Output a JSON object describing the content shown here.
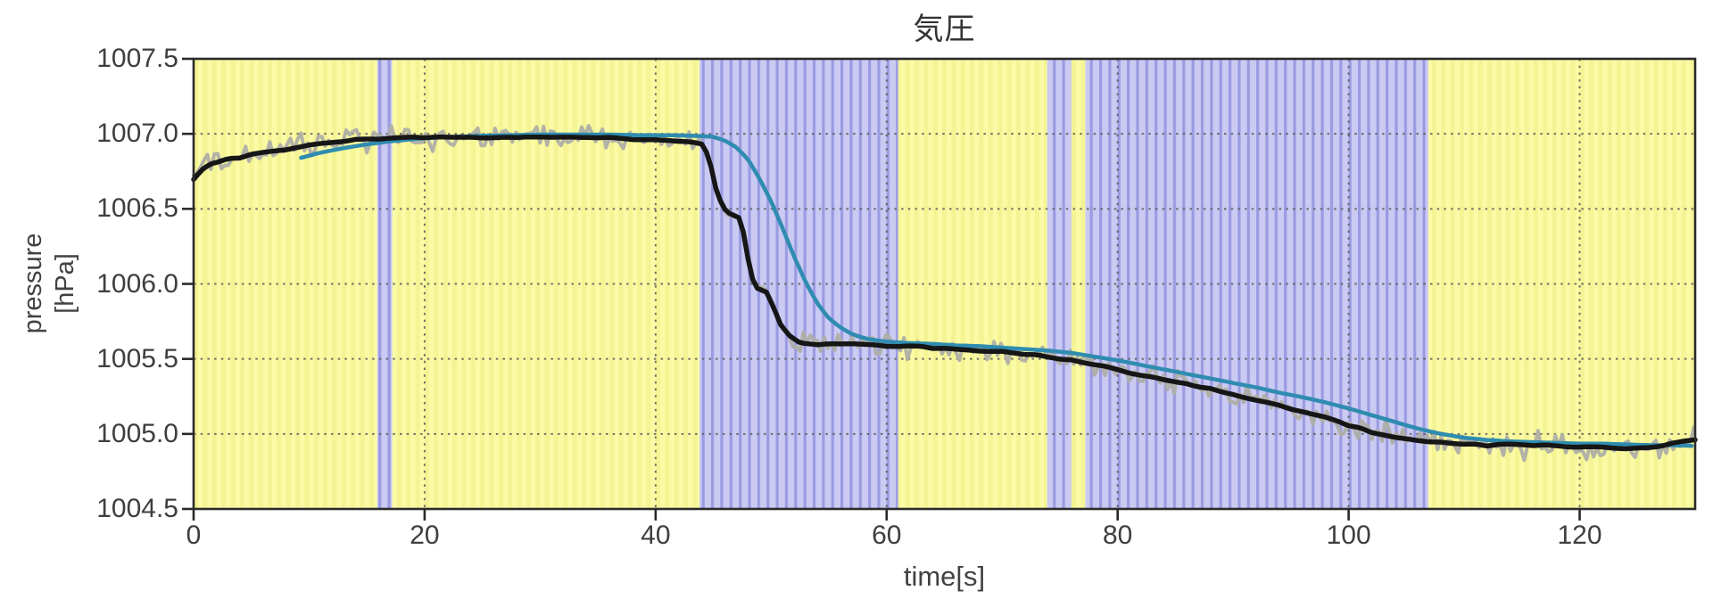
{
  "figure": {
    "ylabel_line1": "pressure",
    "ylabel_line2": "[hPa]"
  },
  "chart_data": {
    "type": "line",
    "title": "気圧",
    "xlabel": "time[s]",
    "ylabel": "pressure [hPa]",
    "xlim": [
      0,
      130
    ],
    "ylim": [
      1004.5,
      1007.5
    ],
    "xticks": [
      "0",
      "20",
      "40",
      "60",
      "80",
      "100",
      "120"
    ],
    "yticks": [
      "1007.5",
      "1007.0",
      "1006.5",
      "1006.0",
      "1005.5",
      "1005.0",
      "1004.5"
    ],
    "grid": "dotted",
    "legend": "none",
    "colors": {
      "yellow_band_base": "#fbfba6",
      "yellow_band_stripe": "#f4f494",
      "blue_band_base": "#cacaf2",
      "blue_band_stripe": "#9b9be2",
      "gridline": "#5a5a5a",
      "spine": "#2a2a2a",
      "raw_line": "#aeaea6",
      "black_line": "#161616",
      "blue_line": "#2f8cb0"
    },
    "background_bands": [
      {
        "from": 0,
        "to": 15.9,
        "state": "yellow"
      },
      {
        "from": 15.9,
        "to": 17.2,
        "state": "blue"
      },
      {
        "from": 17.2,
        "to": 43.8,
        "state": "yellow"
      },
      {
        "from": 43.8,
        "to": 61.0,
        "state": "blue"
      },
      {
        "from": 61.0,
        "to": 73.9,
        "state": "yellow"
      },
      {
        "from": 73.9,
        "to": 76.0,
        "state": "blue"
      },
      {
        "from": 76.0,
        "to": 77.2,
        "state": "yellow"
      },
      {
        "from": 77.2,
        "to": 106.9,
        "state": "blue"
      },
      {
        "from": 106.9,
        "to": 130,
        "state": "yellow"
      }
    ],
    "series": [
      {
        "name": "raw-pressure-gray",
        "style": "noisy",
        "noise": {
          "around": "filtered-black",
          "typical_hPa": 0.1,
          "peak_hPa": 0.17,
          "sample_period_s": 0.3,
          "reduced_interval_s": [
            43.4,
            52.2
          ],
          "reduced_peak_hPa": 0.05
        }
      },
      {
        "name": "filtered-black",
        "style": "solid",
        "points": [
          [
            0,
            1006.7
          ],
          [
            0.7,
            1006.76
          ],
          [
            1.5,
            1006.8
          ],
          [
            3,
            1006.83
          ],
          [
            5,
            1006.86
          ],
          [
            7,
            1006.89
          ],
          [
            9,
            1006.91
          ],
          [
            11,
            1006.94
          ],
          [
            13,
            1006.955
          ],
          [
            15,
            1006.965
          ],
          [
            18,
            1006.975
          ],
          [
            21,
            1006.98
          ],
          [
            24,
            1006.975
          ],
          [
            27,
            1006.975
          ],
          [
            30,
            1006.98
          ],
          [
            33,
            1006.975
          ],
          [
            36,
            1006.975
          ],
          [
            39,
            1006.965
          ],
          [
            41,
            1006.96
          ],
          [
            43,
            1006.945
          ],
          [
            44,
            1006.93
          ],
          [
            44.6,
            1006.85
          ],
          [
            45.2,
            1006.64
          ],
          [
            45.8,
            1006.51
          ],
          [
            46.3,
            1006.47
          ],
          [
            47.2,
            1006.44
          ],
          [
            47.7,
            1006.32
          ],
          [
            48.2,
            1006.07
          ],
          [
            48.7,
            1005.98
          ],
          [
            49.6,
            1005.95
          ],
          [
            50.2,
            1005.85
          ],
          [
            50.8,
            1005.73
          ],
          [
            51.5,
            1005.66
          ],
          [
            52.5,
            1005.61
          ],
          [
            54,
            1005.6
          ],
          [
            56,
            1005.6
          ],
          [
            58,
            1005.595
          ],
          [
            60,
            1005.59
          ],
          [
            62,
            1005.585
          ],
          [
            64,
            1005.575
          ],
          [
            66,
            1005.565
          ],
          [
            68,
            1005.555
          ],
          [
            70,
            1005.545
          ],
          [
            72,
            1005.53
          ],
          [
            74,
            1005.515
          ],
          [
            76,
            1005.49
          ],
          [
            78,
            1005.46
          ],
          [
            80,
            1005.425
          ],
          [
            82,
            1005.39
          ],
          [
            84,
            1005.36
          ],
          [
            86,
            1005.335
          ],
          [
            88,
            1005.3
          ],
          [
            90,
            1005.26
          ],
          [
            92,
            1005.225
          ],
          [
            94,
            1005.19
          ],
          [
            96,
            1005.15
          ],
          [
            98,
            1005.11
          ],
          [
            100,
            1005.06
          ],
          [
            102,
            1005.015
          ],
          [
            104,
            1004.98
          ],
          [
            106,
            1004.955
          ],
          [
            108,
            1004.94
          ],
          [
            110,
            1004.93
          ],
          [
            112,
            1004.925
          ],
          [
            114,
            1004.93
          ],
          [
            116,
            1004.92
          ],
          [
            118,
            1004.925
          ],
          [
            120,
            1004.915
          ],
          [
            122,
            1004.91
          ],
          [
            124,
            1004.9
          ],
          [
            126,
            1004.91
          ],
          [
            127.5,
            1004.93
          ],
          [
            129,
            1004.955
          ],
          [
            130,
            1004.96
          ]
        ]
      },
      {
        "name": "filtered-blue",
        "style": "solid",
        "points": [
          [
            9.3,
            1006.84
          ],
          [
            11,
            1006.875
          ],
          [
            13,
            1006.905
          ],
          [
            15,
            1006.93
          ],
          [
            17,
            1006.95
          ],
          [
            19,
            1006.965
          ],
          [
            21,
            1006.975
          ],
          [
            24,
            1006.985
          ],
          [
            27,
            1006.99
          ],
          [
            30,
            1006.995
          ],
          [
            33,
            1006.995
          ],
          [
            36,
            1006.995
          ],
          [
            39,
            1006.99
          ],
          [
            42,
            1006.99
          ],
          [
            44,
            1006.985
          ],
          [
            45,
            1006.98
          ],
          [
            46,
            1006.955
          ],
          [
            47,
            1006.91
          ],
          [
            48,
            1006.83
          ],
          [
            49,
            1006.7
          ],
          [
            50,
            1006.55
          ],
          [
            51,
            1006.37
          ],
          [
            52,
            1006.18
          ],
          [
            53,
            1006.01
          ],
          [
            54,
            1005.87
          ],
          [
            55,
            1005.77
          ],
          [
            56,
            1005.71
          ],
          [
            57,
            1005.665
          ],
          [
            58,
            1005.64
          ],
          [
            59,
            1005.625
          ],
          [
            60,
            1005.615
          ],
          [
            62,
            1005.605
          ],
          [
            64,
            1005.6
          ],
          [
            66,
            1005.59
          ],
          [
            68,
            1005.585
          ],
          [
            70,
            1005.575
          ],
          [
            72,
            1005.565
          ],
          [
            74,
            1005.555
          ],
          [
            76,
            1005.54
          ],
          [
            78,
            1005.515
          ],
          [
            80,
            1005.49
          ],
          [
            82,
            1005.46
          ],
          [
            84,
            1005.43
          ],
          [
            86,
            1005.4
          ],
          [
            88,
            1005.37
          ],
          [
            90,
            1005.34
          ],
          [
            92,
            1005.31
          ],
          [
            94,
            1005.275
          ],
          [
            96,
            1005.245
          ],
          [
            98,
            1005.21
          ],
          [
            100,
            1005.17
          ],
          [
            102,
            1005.125
          ],
          [
            104,
            1005.08
          ],
          [
            106,
            1005.035
          ],
          [
            108,
            1005.0
          ],
          [
            110,
            1004.975
          ],
          [
            112,
            1004.96
          ],
          [
            114,
            1004.95
          ],
          [
            116,
            1004.945
          ],
          [
            118,
            1004.94
          ],
          [
            120,
            1004.935
          ],
          [
            122,
            1004.935
          ],
          [
            124,
            1004.93
          ],
          [
            126,
            1004.925
          ],
          [
            128,
            1004.925
          ],
          [
            130,
            1004.92
          ]
        ]
      }
    ]
  }
}
